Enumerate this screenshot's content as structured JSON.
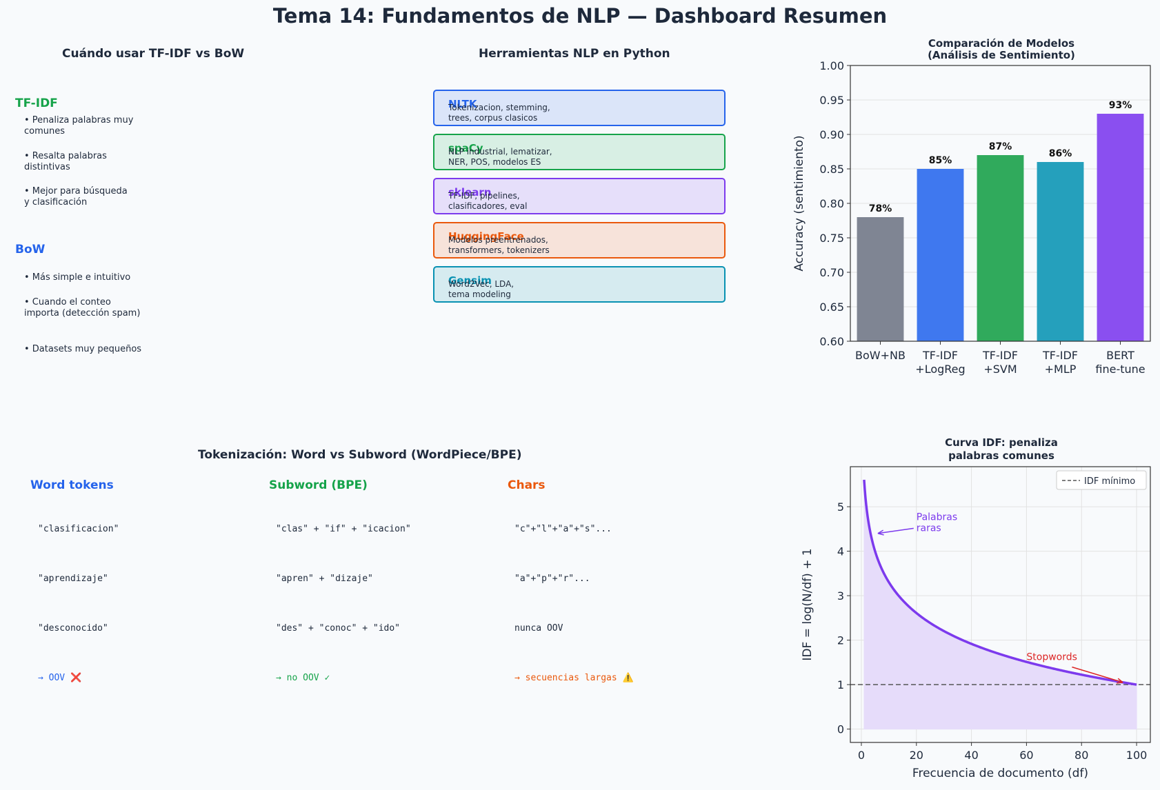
{
  "title": "Tema 14: Fundamentos de NLP — Dashboard Resumen",
  "when_panel": {
    "title": "Cuándo usar TF-IDF vs BoW",
    "tfidf": {
      "heading": "TF-IDF",
      "color": "#16a34a",
      "bullets": [
        "• Penaliza palabras muy\ncomunes",
        "• Resalta palabras\ndistintivas",
        "• Mejor para búsqueda\ny clasificación"
      ]
    },
    "bow": {
      "heading": "BoW",
      "color": "#2563eb",
      "bullets": [
        "• Más simple e intuitivo",
        "• Cuando el conteo\nimporta (detección spam)",
        "• Datasets muy pequeños"
      ]
    }
  },
  "tools_panel": {
    "title": "Herramientas NLP en Python",
    "tools": [
      {
        "name": "NLTK",
        "desc": "Tokenizacion, stemming,\ntrees, corpus clasicos",
        "color": "#2563eb",
        "bg": "#dbe5f9"
      },
      {
        "name": "spaCy",
        "desc": "NLP industrial, lematizar,\nNER, POS, modelos ES",
        "color": "#16a34a",
        "bg": "#d8efe4"
      },
      {
        "name": "sklearn",
        "desc": "TF-IDF, pipelines,\nclasificadores, eval",
        "color": "#7c3aed",
        "bg": "#e6dffa"
      },
      {
        "name": "HuggingFace",
        "desc": "Modelos preentrenados,\ntransformers, tokenizers",
        "color": "#ea580c",
        "bg": "#f7e3da"
      },
      {
        "name": "Gensim",
        "desc": "Word2Vec, LDA,\ntema modeling",
        "color": "#0891b2",
        "bg": "#d6ebf0"
      }
    ]
  },
  "tokenization_panel": {
    "title": "Tokenización: Word vs Subword (WordPiece/BPE)",
    "columns": [
      {
        "heading": "Word tokens",
        "color": "#2563eb",
        "rows": [
          "\"clasificacion\"",
          "\"aprendizaje\"",
          "\"desconocido\""
        ],
        "note": "→ OOV ❌"
      },
      {
        "heading": "Subword (BPE)",
        "color": "#16a34a",
        "rows": [
          "\"clas\" + \"if\" + \"icacion\"",
          "\"apren\" + \"dizaje\"",
          "\"des\" + \"conoc\" + \"ido\""
        ],
        "note": "→ no OOV ✓"
      },
      {
        "heading": "Chars",
        "color": "#ea580c",
        "rows": [
          "\"c\"+\"l\"+\"a\"+\"s\"...",
          "\"a\"+\"p\"+\"r\"...",
          "nunca OOV"
        ],
        "note": "→ secuencias largas ⚠️"
      }
    ]
  },
  "chart_data": [
    {
      "type": "bar",
      "title": "Comparación de Modelos\n(Análisis de Sentimiento)",
      "xlabel": "",
      "ylabel": "Accuracy (sentimiento)",
      "categories": [
        "BoW+NB",
        "TF-IDF\n+LogReg",
        "TF-IDF\n+SVM",
        "TF-IDF\n+MLP",
        "BERT\nfine-tune"
      ],
      "values": [
        0.78,
        0.85,
        0.87,
        0.86,
        0.93
      ],
      "data_labels": [
        "78%",
        "85%",
        "87%",
        "86%",
        "93%"
      ],
      "colors": [
        "#7f8593",
        "#3f78ef",
        "#30aa5c",
        "#25a0bc",
        "#8a4ff0"
      ],
      "ylim": [
        0.6,
        1.0
      ],
      "yticks": [
        0.6,
        0.65,
        0.7,
        0.75,
        0.8,
        0.85,
        0.9,
        0.95,
        1.0
      ],
      "grid": true
    },
    {
      "type": "line",
      "title": "Curva IDF: penaliza\npalabras comunes",
      "xlabel": "Frecuencia de documento (df)",
      "ylabel": "IDF = log(N/df) + 1",
      "N": 100,
      "x_range": [
        1,
        100
      ],
      "xlim": [
        -4,
        105
      ],
      "ylim": [
        -0.3,
        5.9
      ],
      "xticks": [
        0,
        20,
        40,
        60,
        80,
        100
      ],
      "yticks": [
        0,
        1,
        2,
        3,
        4,
        5
      ],
      "line_color": "#7c3aed",
      "fill_color": "#e6dcfa",
      "hline": {
        "y": 1,
        "label": "IDF mínimo",
        "color": "#555555"
      },
      "legend": "top-right",
      "grid": true,
      "annotations": [
        {
          "text": "Palabras\nraras",
          "point": [
            6,
            4.4
          ],
          "text_at": [
            20,
            4.7
          ],
          "color": "#7c3aed"
        },
        {
          "text": "Stopwords",
          "point": [
            95,
            1.05
          ],
          "text_at": [
            60,
            1.55
          ],
          "color": "#dc2626"
        }
      ]
    }
  ]
}
